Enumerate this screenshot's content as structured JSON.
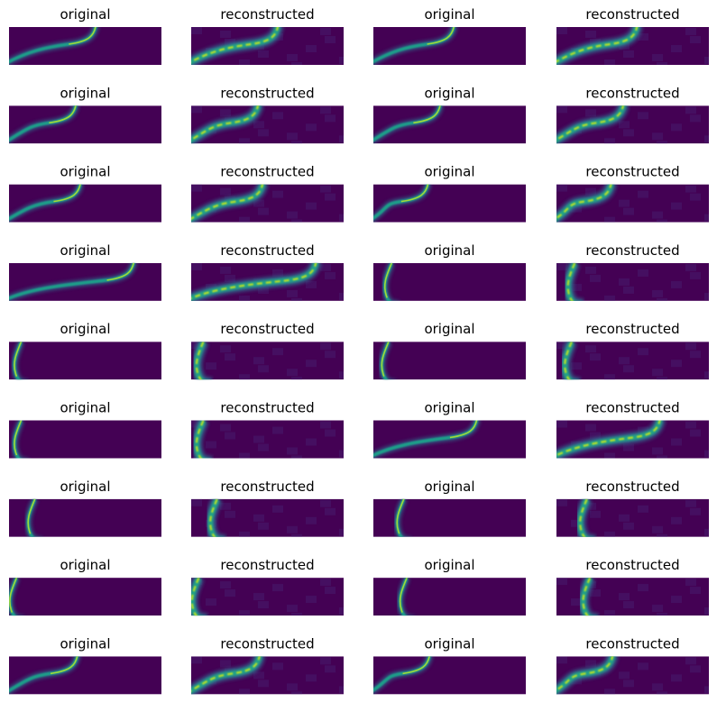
{
  "rows": [
    [
      "original",
      "reconstructed",
      "original",
      "reconstructed"
    ],
    [
      "original",
      "reconstructed",
      "original",
      "reconstructed"
    ],
    [
      "original",
      "reconstructed",
      "original",
      "reconstructed"
    ],
    [
      "original",
      "reconstructed",
      "original",
      "reconstructed"
    ],
    [
      "original",
      "reconstructed",
      "original",
      "reconstructed"
    ],
    [
      "original",
      "reconstructed",
      "original",
      "reconstructed"
    ],
    [
      "original",
      "reconstructed",
      "original",
      "reconstructed"
    ],
    [
      "original",
      "reconstructed",
      "original",
      "reconstructed"
    ],
    [
      "original",
      "reconstructed",
      "original",
      "reconstructed"
    ]
  ]
}
